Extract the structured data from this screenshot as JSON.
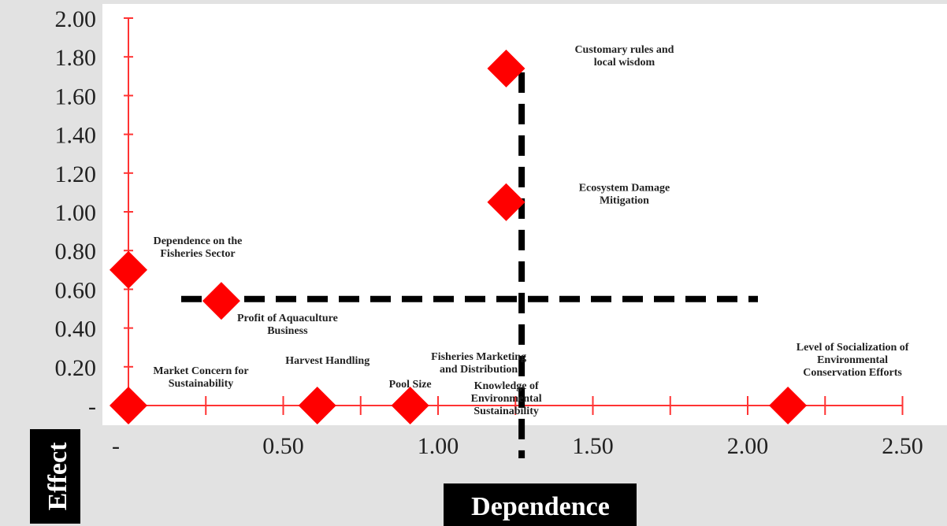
{
  "chart_data": {
    "type": "scatter",
    "xlabel": "Dependence",
    "ylabel": "Effect",
    "xlim": [
      0,
      2.5
    ],
    "ylim": [
      0,
      2.0
    ],
    "x_ticks": [
      "-",
      "0.50",
      "1.00",
      "1.50",
      "2.00",
      "2.50"
    ],
    "y_ticks": [
      "-",
      "0.20",
      "0.40",
      "0.60",
      "0.80",
      "1.00",
      "1.20",
      "1.40",
      "1.60",
      "1.80",
      "2.00"
    ],
    "divider": {
      "x": 1.27,
      "y": 0.55
    },
    "points": [
      {
        "label": [
          "Customary rules and",
          "local wisdom"
        ],
        "x": 1.22,
        "y": 1.74
      },
      {
        "label": [
          "Ecosystem Damage",
          "Mitigation"
        ],
        "x": 1.22,
        "y": 1.05
      },
      {
        "label": [
          "Dependence on the",
          "Fisheries Sector"
        ],
        "x": 0.0,
        "y": 0.7
      },
      {
        "label": [
          "Profit of Aquaculture",
          "Business"
        ],
        "x": 0.3,
        "y": 0.54
      },
      {
        "label": [
          "Market Concern for",
          "Sustainability"
        ],
        "x": 0.0,
        "y": 0.0
      },
      {
        "label": [
          "Harvest Handling"
        ],
        "x": 0.61,
        "y": 0.0
      },
      {
        "label": [
          "Pool Size"
        ],
        "x": 0.91,
        "y": 0.0
      },
      {
        "label": [
          "Fisheries Marketing",
          "and Distribution"
        ],
        "x": 0.91,
        "y": 0.0
      },
      {
        "label": [
          "Knowledge of",
          "Environmental",
          "Sustainability"
        ],
        "x": 0.91,
        "y": 0.0
      },
      {
        "label": [
          "Level of Socialization of",
          "Environmental",
          "Conservation Efforts"
        ],
        "x": 2.13,
        "y": 0.0
      }
    ],
    "colors": {
      "marker": "#ff0000",
      "axis": "#ff3333",
      "divider": "#000000",
      "plot_bg": "#ffffff"
    }
  }
}
